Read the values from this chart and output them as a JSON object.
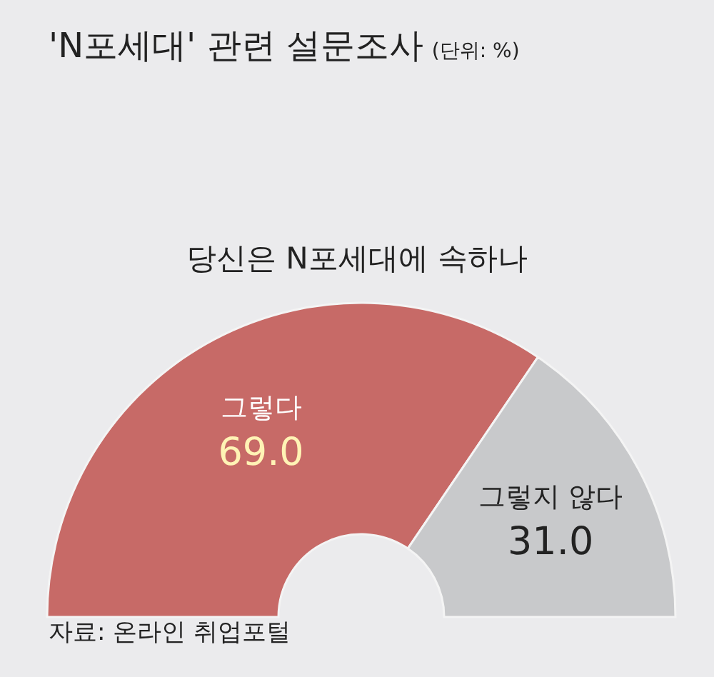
{
  "chart_data": {
    "type": "donut",
    "title": "'N포세대' 관련 설문조사",
    "subtitle": "당신은 N포세대에 속하나",
    "annotations": [
      "(단위: %)",
      "자료: 온라인 취업포털"
    ],
    "categories": [
      "그렇다",
      "그렇지 않다"
    ],
    "values": [
      69.0,
      31.0
    ],
    "value_labels": [
      "69.0",
      "31.0"
    ],
    "colors": [
      "#c76a67",
      "#c8c9cb"
    ]
  }
}
